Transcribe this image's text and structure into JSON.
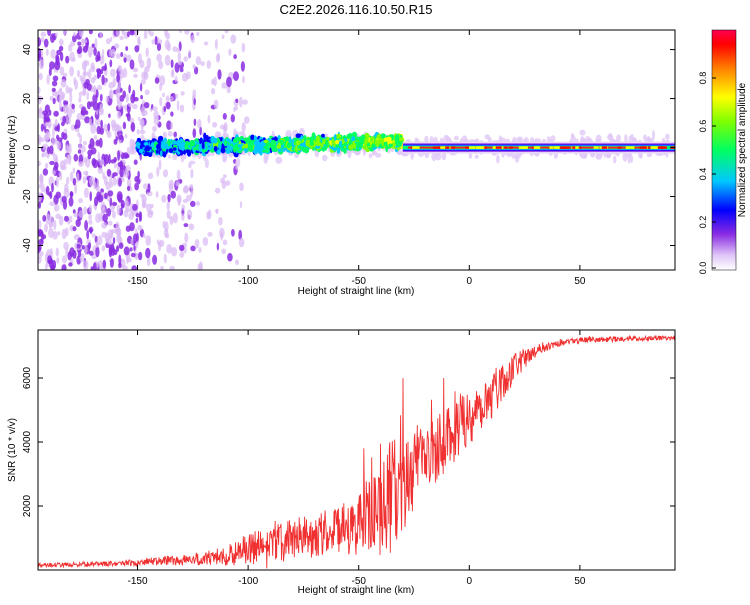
{
  "title": "C2E2.2026.116.10.50.R15",
  "chart_data": [
    {
      "type": "heatmap",
      "title": "C2E2.2026.116.10.50.R15",
      "xlabel": "Height of straight line (km)",
      "ylabel": "Frequency (Hz)",
      "xlim": [
        -195,
        93
      ],
      "ylim": [
        -50,
        48
      ],
      "x_ticks": [
        -150,
        -100,
        -50,
        0,
        50
      ],
      "y_ticks": [
        -40,
        -20,
        0,
        20,
        40
      ],
      "x_tick_labels": [
        "-150",
        "-100",
        "-50",
        "0",
        "50"
      ],
      "y_tick_labels": [
        "-40",
        "-20",
        "0",
        "20",
        "40"
      ],
      "colorbar": {
        "label": "Normalized spectral amplitude",
        "range": [
          0,
          1
        ],
        "ticks": [
          0.0,
          0.2,
          0.4,
          0.6,
          0.8
        ],
        "tick_labels": [
          "0.0",
          "0.2",
          "0.4",
          "0.6",
          "0.8"
        ],
        "colors": [
          "#e8d8f8",
          "#8a2be2",
          "#0000ff",
          "#00c8ff",
          "#00ff80",
          "#7fff00",
          "#ffff00",
          "#ff8000",
          "#ff0000",
          "#ff0050"
        ]
      },
      "features": [
        {
          "name": "noise region",
          "x_range": [
            -195,
            -110
          ],
          "frequency_range": [
            -50,
            48
          ],
          "amplitude": 0.1
        },
        {
          "name": "signal band",
          "x_range": [
            -150,
            -30
          ],
          "frequency_range": [
            -5,
            8
          ],
          "amplitude": 0.4
        },
        {
          "name": "carrier line",
          "x_range": [
            -30,
            93
          ],
          "frequency": 0,
          "amplitude": 0.9
        }
      ]
    },
    {
      "type": "line",
      "xlabel": "Height of straight line (km)",
      "ylabel": "SNR (10 * v/v)",
      "xlim": [
        -195,
        93
      ],
      "ylim": [
        0,
        7500
      ],
      "x_ticks": [
        -150,
        -100,
        -50,
        0,
        50
      ],
      "y_ticks": [
        2000,
        4000,
        6000
      ],
      "x_tick_labels": [
        "-150",
        "-100",
        "-50",
        "0",
        "50"
      ],
      "y_tick_labels": [
        "2000",
        "4000",
        "6000"
      ],
      "color": "#f03030",
      "series": [
        {
          "name": "SNR",
          "x": [
            -195,
            -180,
            -160,
            -140,
            -120,
            -110,
            -100,
            -90,
            -80,
            -70,
            -60,
            -50,
            -45,
            -40,
            -35,
            -30,
            -25,
            -20,
            -15,
            -10,
            -5,
            0,
            5,
            10,
            15,
            20,
            25,
            30,
            35,
            40,
            45,
            50,
            55,
            60,
            65,
            70,
            75,
            80,
            85,
            93
          ],
          "values": [
            150,
            170,
            200,
            280,
            350,
            450,
            650,
            800,
            950,
            1100,
            1250,
            1400,
            1700,
            2000,
            2300,
            2700,
            3100,
            3500,
            3850,
            4200,
            4500,
            4800,
            5100,
            5500,
            5900,
            6300,
            6600,
            6850,
            7000,
            7100,
            7150,
            7180,
            7200,
            7200,
            7210,
            7220,
            7230,
            7240,
            7250,
            7250
          ],
          "spread": [
            60,
            70,
            80,
            140,
            220,
            320,
            500,
            600,
            650,
            700,
            750,
            1000,
            1300,
            1600,
            1800,
            1700,
            1400,
            1200,
            1100,
            1100,
            1000,
            900,
            900,
            800,
            600,
            450,
            300,
            200,
            150,
            120,
            100,
            90,
            80,
            80,
            80,
            80,
            80,
            80,
            80,
            80
          ]
        }
      ]
    }
  ]
}
